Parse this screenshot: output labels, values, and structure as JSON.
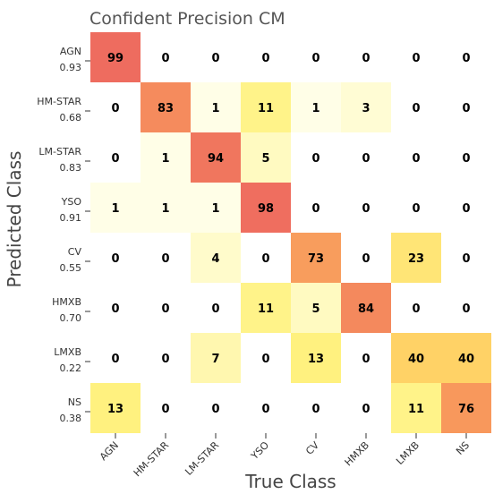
{
  "chart_data": {
    "type": "heatmap",
    "title": "Confident Precision CM",
    "xlabel": "True Class",
    "ylabel": "Predicted Class",
    "x_categories": [
      "AGN",
      "HM-STAR",
      "LM-STAR",
      "YSO",
      "CV",
      "HMXB",
      "LMXB",
      "NS"
    ],
    "y_categories": [
      "AGN",
      "HM-STAR",
      "LM-STAR",
      "YSO",
      "CV",
      "HMXB",
      "LMXB",
      "NS"
    ],
    "y_scores": [
      "0.93",
      "0.68",
      "0.83",
      "0.91",
      "0.55",
      "0.70",
      "0.22",
      "0.38"
    ],
    "values": [
      [
        99,
        0,
        0,
        0,
        0,
        0,
        0,
        0
      ],
      [
        0,
        83,
        1,
        11,
        1,
        3,
        0,
        0
      ],
      [
        0,
        1,
        94,
        5,
        0,
        0,
        0,
        0
      ],
      [
        1,
        1,
        1,
        98,
        0,
        0,
        0,
        0
      ],
      [
        0,
        0,
        4,
        0,
        73,
        0,
        23,
        0
      ],
      [
        0,
        0,
        0,
        11,
        5,
        84,
        0,
        0
      ],
      [
        0,
        0,
        7,
        0,
        13,
        0,
        40,
        40
      ],
      [
        13,
        0,
        0,
        0,
        0,
        0,
        11,
        76
      ]
    ],
    "color_range": [
      0,
      100
    ],
    "colormap": {
      "low": "#fffff0",
      "mid_low": "#fff280",
      "mid": "#ffd266",
      "mid_high": "#f89a5c",
      "high": "#ee6a5f"
    }
  }
}
